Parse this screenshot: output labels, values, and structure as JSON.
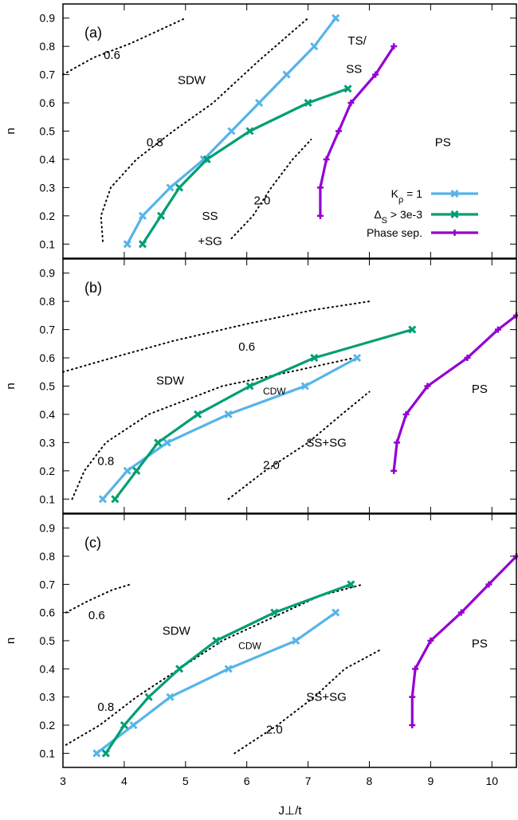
{
  "colors": {
    "kp1": "#56b4e9",
    "delta": "#009e73",
    "ps": "#9400d3",
    "frame": "#000000",
    "contour": "#000000"
  },
  "x_axis": {
    "label": "J⊥/t",
    "ticks": [
      3,
      4,
      5,
      6,
      7,
      8,
      9,
      10
    ],
    "tick_labels": [
      "3",
      "4",
      "5",
      "6",
      "7",
      "8",
      "9",
      "10"
    ]
  },
  "chart_data": [
    {
      "type": "line",
      "panel_label": "(a)",
      "xlabel": "",
      "ylabel": "n",
      "xlim": [
        3,
        10.4
      ],
      "ylim": [
        0.05,
        0.95
      ],
      "yticks": [
        0.1,
        0.2,
        0.3,
        0.4,
        0.5,
        0.6,
        0.7,
        0.8,
        0.9
      ],
      "ytick_labels": [
        "0.1",
        "0.2",
        "0.3",
        "0.4",
        "0.5",
        "0.6",
        "0.7",
        "0.8",
        "0.9"
      ],
      "legend": {
        "placement": "inside-lower-right",
        "entries": [
          "Kρ = 1",
          "ΔS > 3e-3",
          "Phase sep."
        ]
      },
      "series": [
        {
          "name": "Kρ = 1",
          "color_key": "kp1",
          "marker": "x",
          "x": [
            4.05,
            4.3,
            4.75,
            5.3,
            5.75,
            6.2,
            6.65,
            7.1,
            7.45
          ],
          "y": [
            0.1,
            0.2,
            0.3,
            0.4,
            0.5,
            0.6,
            0.7,
            0.8,
            0.9
          ]
        },
        {
          "name": "ΔS > 3e-3",
          "color_key": "delta",
          "marker": "x",
          "x": [
            4.3,
            4.6,
            4.9,
            5.35,
            6.05,
            7.0,
            7.65
          ],
          "y": [
            0.1,
            0.2,
            0.3,
            0.4,
            0.5,
            0.6,
            0.65
          ]
        },
        {
          "name": "Phase sep.",
          "color_key": "ps",
          "marker": "plus",
          "x": [
            7.2,
            7.2,
            7.3,
            7.5,
            7.7,
            8.1,
            8.4
          ],
          "y": [
            0.2,
            0.3,
            0.4,
            0.5,
            0.6,
            0.7,
            0.8
          ]
        }
      ],
      "contours": [
        {
          "value_label": "0.6",
          "x": [
            3.0,
            3.5,
            4.1,
            4.7,
            5.0
          ],
          "y": [
            0.7,
            0.76,
            0.81,
            0.87,
            0.9
          ]
        },
        {
          "value_label": "0.8",
          "x": [
            3.65,
            3.62,
            3.78,
            4.2,
            4.8,
            5.45,
            6.2,
            7.0
          ],
          "y": [
            0.11,
            0.2,
            0.3,
            0.4,
            0.5,
            0.6,
            0.75,
            0.9
          ]
        },
        {
          "value_label": "2.0",
          "x": [
            5.75,
            6.1,
            6.4,
            6.75,
            7.05
          ],
          "y": [
            0.12,
            0.2,
            0.3,
            0.4,
            0.47
          ]
        }
      ],
      "annotations": [
        {
          "text": "0.6",
          "x": 3.8,
          "y": 0.77
        },
        {
          "text": "0.8",
          "x": 4.5,
          "y": 0.46
        },
        {
          "text": "2.0",
          "x": 6.25,
          "y": 0.255
        },
        {
          "text": "SDW",
          "x": 5.1,
          "y": 0.68
        },
        {
          "text": "TS/",
          "x": 7.8,
          "y": 0.82
        },
        {
          "text": "SS",
          "x": 7.75,
          "y": 0.72
        },
        {
          "text": "SS",
          "x": 5.4,
          "y": 0.2
        },
        {
          "text": "+SG",
          "x": 5.4,
          "y": 0.11
        },
        {
          "text": "PS",
          "x": 9.2,
          "y": 0.46
        }
      ]
    },
    {
      "type": "line",
      "panel_label": "(b)",
      "xlabel": "",
      "ylabel": "n",
      "xlim": [
        3,
        10.4
      ],
      "ylim": [
        0.05,
        0.95
      ],
      "yticks": [
        0.1,
        0.2,
        0.3,
        0.4,
        0.5,
        0.6,
        0.7,
        0.8,
        0.9
      ],
      "ytick_labels": [
        "0.1",
        "0.2",
        "0.3",
        "0.4",
        "0.5",
        "0.6",
        "0.7",
        "0.8",
        "0.9"
      ],
      "series": [
        {
          "name": "Kρ = 1",
          "color_key": "kp1",
          "marker": "x",
          "x": [
            3.65,
            4.05,
            4.7,
            5.7,
            6.95,
            7.8
          ],
          "y": [
            0.1,
            0.2,
            0.3,
            0.4,
            0.5,
            0.6
          ]
        },
        {
          "name": "ΔS > 3e-3",
          "color_key": "delta",
          "marker": "x",
          "x": [
            3.85,
            4.2,
            4.55,
            5.2,
            6.05,
            7.1,
            8.7
          ],
          "y": [
            0.1,
            0.2,
            0.3,
            0.4,
            0.5,
            0.6,
            0.7
          ]
        },
        {
          "name": "Phase sep.",
          "color_key": "ps",
          "marker": "plus",
          "x": [
            8.4,
            8.45,
            8.6,
            8.95,
            9.6,
            10.1,
            10.4
          ],
          "y": [
            0.2,
            0.3,
            0.4,
            0.5,
            0.6,
            0.7,
            0.75
          ]
        }
      ],
      "contours": [
        {
          "value_label": "0.6",
          "x": [
            3.0,
            3.8,
            4.8,
            6.0,
            7.1,
            8.0
          ],
          "y": [
            0.55,
            0.6,
            0.66,
            0.72,
            0.77,
            0.8
          ]
        },
        {
          "value_label": "0.8",
          "x": [
            3.15,
            3.35,
            3.7,
            4.4,
            5.6,
            6.7,
            7.75
          ],
          "y": [
            0.1,
            0.2,
            0.3,
            0.4,
            0.5,
            0.55,
            0.6
          ]
        },
        {
          "value_label": "2.0",
          "x": [
            5.7,
            6.3,
            7.0,
            7.55,
            8.0
          ],
          "y": [
            0.1,
            0.2,
            0.3,
            0.4,
            0.48
          ]
        }
      ],
      "annotations": [
        {
          "text": "0.6",
          "x": 6.0,
          "y": 0.64
        },
        {
          "text": "0.8",
          "x": 3.7,
          "y": 0.235
        },
        {
          "text": "2.0",
          "x": 6.4,
          "y": 0.22
        },
        {
          "text": "SDW",
          "x": 4.75,
          "y": 0.52
        },
        {
          "text": "CDW",
          "x": 6.45,
          "y": 0.485,
          "small": true
        },
        {
          "text": "SS+SG",
          "x": 7.3,
          "y": 0.3
        },
        {
          "text": "PS",
          "x": 9.8,
          "y": 0.49
        }
      ]
    },
    {
      "type": "line",
      "panel_label": "(c)",
      "xlabel": "J⊥/t",
      "ylabel": "n",
      "xlim": [
        3,
        10.4
      ],
      "ylim": [
        0.05,
        0.95
      ],
      "yticks": [
        0.1,
        0.2,
        0.3,
        0.4,
        0.5,
        0.6,
        0.7,
        0.8,
        0.9
      ],
      "ytick_labels": [
        "0.1",
        "0.2",
        "0.3",
        "0.4",
        "0.5",
        "0.6",
        "0.7",
        "0.8",
        "0.9"
      ],
      "series": [
        {
          "name": "Kρ = 1",
          "color_key": "kp1",
          "marker": "x",
          "x": [
            3.55,
            4.15,
            4.75,
            5.7,
            6.8,
            7.45
          ],
          "y": [
            0.1,
            0.2,
            0.3,
            0.4,
            0.5,
            0.6
          ]
        },
        {
          "name": "ΔS > 3e-3",
          "color_key": "delta",
          "marker": "x",
          "x": [
            3.7,
            4.0,
            4.4,
            4.9,
            5.5,
            6.45,
            7.7
          ],
          "y": [
            0.1,
            0.2,
            0.3,
            0.4,
            0.5,
            0.6,
            0.7
          ]
        },
        {
          "name": "Phase sep.",
          "color_key": "ps",
          "marker": "plus",
          "x": [
            8.7,
            8.7,
            8.75,
            9.0,
            9.5,
            9.95,
            10.4
          ],
          "y": [
            0.2,
            0.3,
            0.4,
            0.5,
            0.6,
            0.7,
            0.8
          ]
        }
      ],
      "contours": [
        {
          "value_label": "0.6",
          "x": [
            3.05,
            3.4,
            3.8,
            4.1
          ],
          "y": [
            0.6,
            0.64,
            0.68,
            0.7
          ]
        },
        {
          "value_label": "0.8",
          "x": [
            3.05,
            3.6,
            4.2,
            4.9,
            5.6,
            6.4,
            7.2,
            7.9
          ],
          "y": [
            0.13,
            0.2,
            0.3,
            0.4,
            0.5,
            0.58,
            0.66,
            0.7
          ]
        },
        {
          "value_label": "2.0",
          "x": [
            5.8,
            6.5,
            7.1,
            7.6,
            8.2
          ],
          "y": [
            0.1,
            0.2,
            0.3,
            0.4,
            0.47
          ]
        }
      ],
      "annotations": [
        {
          "text": "0.6",
          "x": 3.55,
          "y": 0.59
        },
        {
          "text": "0.8",
          "x": 3.7,
          "y": 0.265
        },
        {
          "text": "2.0",
          "x": 6.45,
          "y": 0.185
        },
        {
          "text": "SDW",
          "x": 4.85,
          "y": 0.535
        },
        {
          "text": "CDW",
          "x": 6.05,
          "y": 0.485,
          "small": true
        },
        {
          "text": "SS+SG",
          "x": 7.3,
          "y": 0.3
        },
        {
          "text": "PS",
          "x": 9.8,
          "y": 0.49
        }
      ]
    }
  ]
}
